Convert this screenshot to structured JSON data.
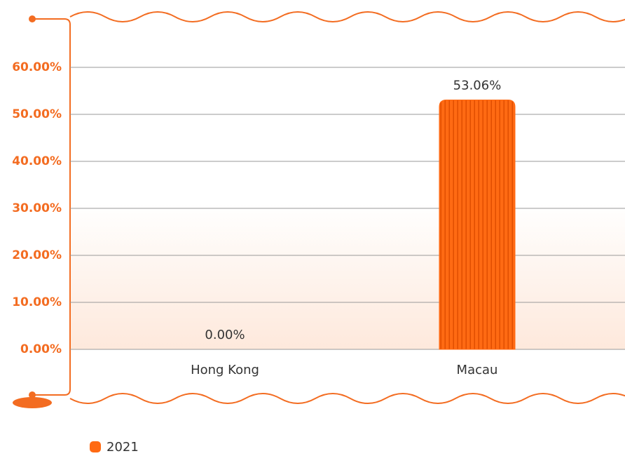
{
  "chart_data": {
    "type": "bar",
    "categories": [
      "Hong Kong",
      "Macau"
    ],
    "series": [
      {
        "name": "2021",
        "color": "#ff6a13",
        "values": [
          0,
          53.06
        ],
        "value_labels": [
          "0.00%",
          "53.06%"
        ]
      }
    ],
    "ylim": [
      0,
      60
    ],
    "yticks": [
      {
        "value": 0,
        "label": "0.00%"
      },
      {
        "value": 10,
        "label": "10.00%"
      },
      {
        "value": 20,
        "label": "20.00%"
      },
      {
        "value": 30,
        "label": "30.00%"
      },
      {
        "value": 40,
        "label": "40.00%"
      },
      {
        "value": 50,
        "label": "50.00%"
      },
      {
        "value": 60,
        "label": "60.00%"
      }
    ],
    "grid": true
  }
}
